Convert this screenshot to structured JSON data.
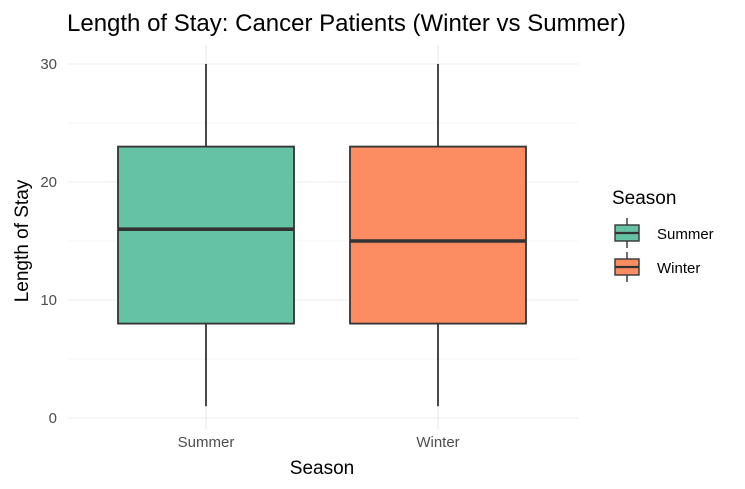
{
  "chart_data": {
    "type": "boxplot",
    "title": "Length of Stay: Cancer Patients (Winter vs Summer)",
    "xlabel": "Season",
    "ylabel": "Length of Stay",
    "ylim": [
      0,
      30
    ],
    "yticks": [
      0,
      10,
      20,
      30
    ],
    "grid": true,
    "categories": [
      "Summer",
      "Winter"
    ],
    "series": [
      {
        "name": "Summer",
        "min": 1,
        "q1": 8,
        "median": 16,
        "q3": 23,
        "max": 30,
        "color": "#66c2a5"
      },
      {
        "name": "Winter",
        "min": 1,
        "q1": 8,
        "median": 15,
        "q3": 23,
        "max": 30,
        "color": "#fc8d62"
      }
    ],
    "legend": {
      "title": "Season",
      "position": "right",
      "entries": [
        "Summer",
        "Winter"
      ]
    }
  }
}
